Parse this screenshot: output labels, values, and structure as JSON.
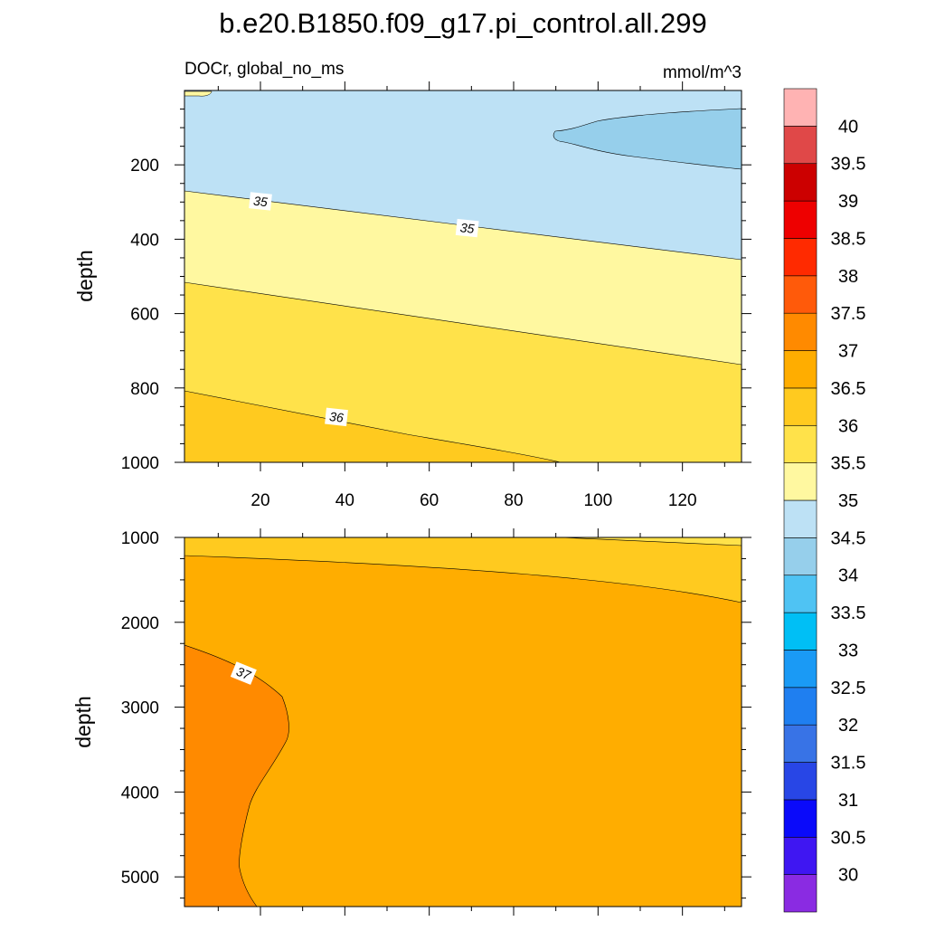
{
  "chart_data": {
    "type": "contour",
    "title": "b.e20.B1850.f09_g17.pi_control.all.299",
    "variable_label": "DOCr, global_no_ms",
    "units_label": "mmol/m^3",
    "ylabel": "depth",
    "colorbar": {
      "levels": [
        "30",
        "30.5",
        "31",
        "31.5",
        "32",
        "32.5",
        "33",
        "33.5",
        "34",
        "34.5",
        "35",
        "35.5",
        "36",
        "36.5",
        "37",
        "37.5",
        "38",
        "38.5",
        "39",
        "39.5",
        "40"
      ],
      "colors": [
        "#8a2be2",
        "#3f16f2",
        "#0a0afa",
        "#2846e6",
        "#3873e6",
        "#1f7ff0",
        "#1a9af5",
        "#00bff5",
        "#4fc3f3",
        "#96cfeb",
        "#bde1f5",
        "#fff8a0",
        "#ffe24a",
        "#ffca1f",
        "#ffad00",
        "#ff8a00",
        "#ff5a0a",
        "#ff2a00",
        "#ee0000",
        "#cc0000",
        "#e04848",
        "#ffb3b3"
      ]
    },
    "panels": [
      {
        "name": "upper",
        "xlim": [
          2,
          134
        ],
        "ylim": [
          0,
          1000
        ],
        "xticks": [
          "20",
          "40",
          "60",
          "80",
          "100",
          "120"
        ],
        "xtick_values": [
          20,
          40,
          60,
          80,
          100,
          120
        ],
        "yticks": [
          "200",
          "400",
          "600",
          "800",
          "1000"
        ],
        "ytick_values": [
          200,
          400,
          600,
          800,
          1000
        ],
        "contour_labels": [
          {
            "text": "35",
            "x": 20,
            "y": 298
          },
          {
            "text": "35",
            "x": 69,
            "y": 370
          },
          {
            "text": "36",
            "x": 38,
            "y": 878
          }
        ],
        "regions": [
          {
            "level": "34.5-35",
            "description": "upper layer"
          },
          {
            "level": "34-34.5",
            "description": "tongue near x 100-134 at depth 60-180"
          },
          {
            "level": "35-35.5",
            "description": "band"
          },
          {
            "level": "35.5-36",
            "description": "band"
          },
          {
            "level": "36-36.5",
            "description": "lower-left wedge"
          }
        ]
      },
      {
        "name": "lower",
        "xlim": [
          2,
          134
        ],
        "ylim": [
          1000,
          5350
        ],
        "yticks": [
          "1000",
          "2000",
          "3000",
          "4000",
          "5000"
        ],
        "ytick_values": [
          1000,
          2000,
          3000,
          4000,
          5000
        ],
        "contour_labels": [
          {
            "text": "37",
            "x": 16,
            "y": 2600
          }
        ],
        "regions": [
          {
            "level": "36-36.5",
            "description": "top band"
          },
          {
            "level": "36.5-37",
            "description": "bulk of deep water"
          },
          {
            "level": "37-37.5",
            "description": "deep western region"
          }
        ]
      }
    ]
  }
}
